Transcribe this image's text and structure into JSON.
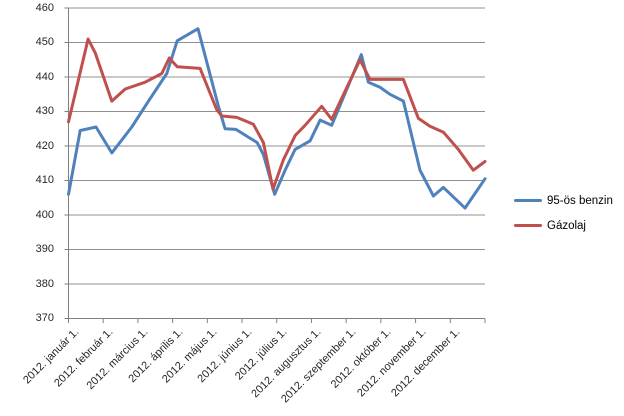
{
  "chart_data": {
    "type": "line",
    "title": "",
    "xlabel": "",
    "ylabel": "",
    "grid": true,
    "legend_position": "right",
    "y_axis": {
      "min": 370,
      "max": 460,
      "step": 10,
      "tick_labels": [
        "460",
        "450",
        "440",
        "430",
        "420",
        "410",
        "400",
        "390",
        "380",
        "370"
      ]
    },
    "x_axis": {
      "tick_count": 13,
      "categories": [
        "2012. január 1.",
        "2012. február 1.",
        "2012. március 1.",
        "2012. április 1.",
        "2012. május 1.",
        "2012. június 1.",
        "2012. július 1.",
        "2012. augusztus 1.",
        "2012. szeptember 1.",
        "2012. október 1.",
        "2012. november 1.",
        "2012. december 1."
      ]
    },
    "point_format": "[fraction_across_x_axis_0_to_1, price_value]",
    "series": [
      {
        "name": "95-ös benzin",
        "color": "#4F81BD",
        "points": [
          [
            0.0,
            406
          ],
          [
            0.028,
            424.5
          ],
          [
            0.066,
            425.5
          ],
          [
            0.104,
            418
          ],
          [
            0.152,
            425.5
          ],
          [
            0.192,
            433
          ],
          [
            0.236,
            441
          ],
          [
            0.261,
            450.5
          ],
          [
            0.311,
            454
          ],
          [
            0.36,
            431.5
          ],
          [
            0.376,
            425
          ],
          [
            0.402,
            424.8
          ],
          [
            0.453,
            421
          ],
          [
            0.468,
            417.5
          ],
          [
            0.495,
            406
          ],
          [
            0.52,
            413
          ],
          [
            0.544,
            419
          ],
          [
            0.58,
            421.5
          ],
          [
            0.604,
            427.5
          ],
          [
            0.632,
            426
          ],
          [
            0.703,
            446.5
          ],
          [
            0.72,
            438.5
          ],
          [
            0.748,
            437
          ],
          [
            0.772,
            435
          ],
          [
            0.804,
            433
          ],
          [
            0.844,
            413
          ],
          [
            0.876,
            405.5
          ],
          [
            0.9,
            408
          ],
          [
            0.952,
            402
          ],
          [
            1.0,
            410.5
          ]
        ]
      },
      {
        "name": "Gázolaj",
        "color": "#C0504D",
        "points": [
          [
            0.0,
            427
          ],
          [
            0.047,
            451
          ],
          [
            0.064,
            447
          ],
          [
            0.104,
            433
          ],
          [
            0.136,
            436.5
          ],
          [
            0.184,
            438.5
          ],
          [
            0.224,
            441
          ],
          [
            0.242,
            445.5
          ],
          [
            0.261,
            443
          ],
          [
            0.316,
            442.5
          ],
          [
            0.356,
            430.5
          ],
          [
            0.368,
            428.7
          ],
          [
            0.404,
            428.3
          ],
          [
            0.444,
            426.3
          ],
          [
            0.468,
            421
          ],
          [
            0.491,
            407.5
          ],
          [
            0.516,
            416
          ],
          [
            0.544,
            423
          ],
          [
            0.568,
            426
          ],
          [
            0.608,
            431.5
          ],
          [
            0.632,
            427.7
          ],
          [
            0.7,
            445
          ],
          [
            0.724,
            439.3
          ],
          [
            0.804,
            439.3
          ],
          [
            0.84,
            428
          ],
          [
            0.868,
            425.7
          ],
          [
            0.9,
            424
          ],
          [
            0.936,
            419
          ],
          [
            0.972,
            413
          ],
          [
            1.0,
            415.5
          ]
        ]
      }
    ],
    "colors": {
      "gridline": "#909090",
      "axis": "#808080",
      "tick_text": "#262626"
    }
  }
}
